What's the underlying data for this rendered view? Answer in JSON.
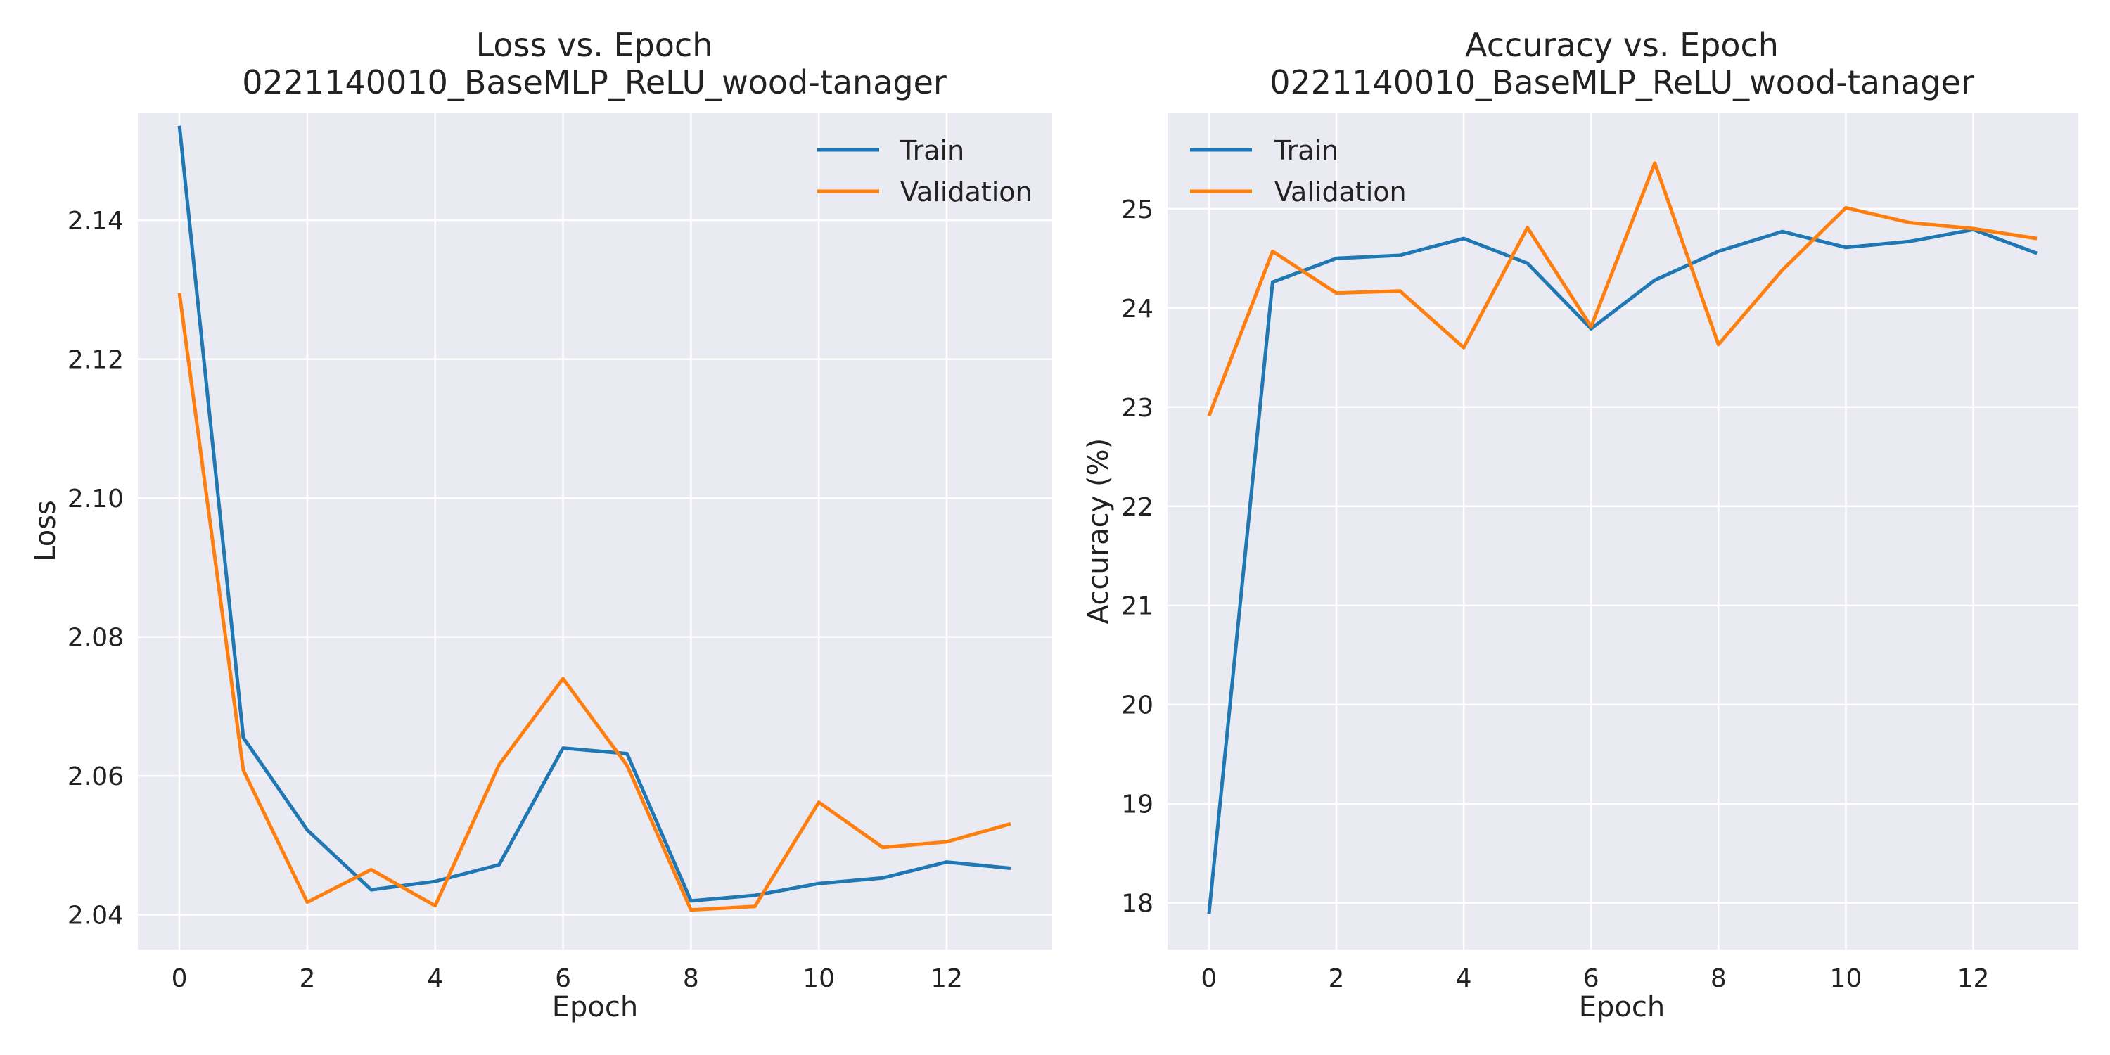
{
  "chart_data": [
    {
      "type": "line",
      "title": "Loss vs. Epoch",
      "subtitle": "0221140010_BaseMLP_ReLU_wood-tanager",
      "xlabel": "Epoch",
      "ylabel": "Loss",
      "xlim": [
        -0.65,
        13.65
      ],
      "ylim": [
        2.035,
        2.1555
      ],
      "xticks": [
        0,
        2,
        4,
        6,
        8,
        10,
        12
      ],
      "yticks": [
        2.04,
        2.06,
        2.08,
        2.1,
        2.12,
        2.14
      ],
      "grid": true,
      "legend_position": "top-right",
      "x": [
        0,
        1,
        2,
        3,
        4,
        5,
        6,
        7,
        8,
        9,
        10,
        11,
        12,
        13
      ],
      "series": [
        {
          "name": "Train",
          "color": "#1f77b4",
          "values": [
            2.1536,
            2.0655,
            2.0522,
            2.0436,
            2.0448,
            2.0472,
            2.064,
            2.0632,
            2.042,
            2.0428,
            2.0445,
            2.0453,
            2.0476,
            2.0467
          ]
        },
        {
          "name": "Validation",
          "color": "#ff7f0e",
          "values": [
            2.1295,
            2.0608,
            2.0418,
            2.0465,
            2.0413,
            2.0616,
            2.074,
            2.0615,
            2.0407,
            2.0412,
            2.0562,
            2.0497,
            2.0505,
            2.0531
          ]
        }
      ]
    },
    {
      "type": "line",
      "title": "Accuracy vs. Epoch",
      "subtitle": "0221140010_BaseMLP_ReLU_wood-tanager",
      "xlabel": "Epoch",
      "ylabel": "Accuracy (%)",
      "xlim": [
        -0.65,
        13.65
      ],
      "ylim": [
        17.53,
        25.97
      ],
      "xticks": [
        0,
        2,
        4,
        6,
        8,
        10,
        12
      ],
      "yticks": [
        18,
        19,
        20,
        21,
        22,
        23,
        24,
        25
      ],
      "grid": true,
      "legend_position": "top-left",
      "x": [
        0,
        1,
        2,
        3,
        4,
        5,
        6,
        7,
        8,
        9,
        10,
        11,
        12,
        13
      ],
      "series": [
        {
          "name": "Train",
          "color": "#1f77b4",
          "values": [
            17.89,
            24.26,
            24.5,
            24.53,
            24.7,
            24.45,
            23.79,
            24.28,
            24.57,
            24.77,
            24.61,
            24.67,
            24.79,
            24.55
          ]
        },
        {
          "name": "Validation",
          "color": "#ff7f0e",
          "values": [
            22.91,
            24.57,
            24.15,
            24.17,
            23.6,
            24.81,
            23.81,
            25.46,
            23.63,
            24.38,
            25.01,
            24.86,
            24.8,
            24.7
          ]
        }
      ]
    }
  ]
}
